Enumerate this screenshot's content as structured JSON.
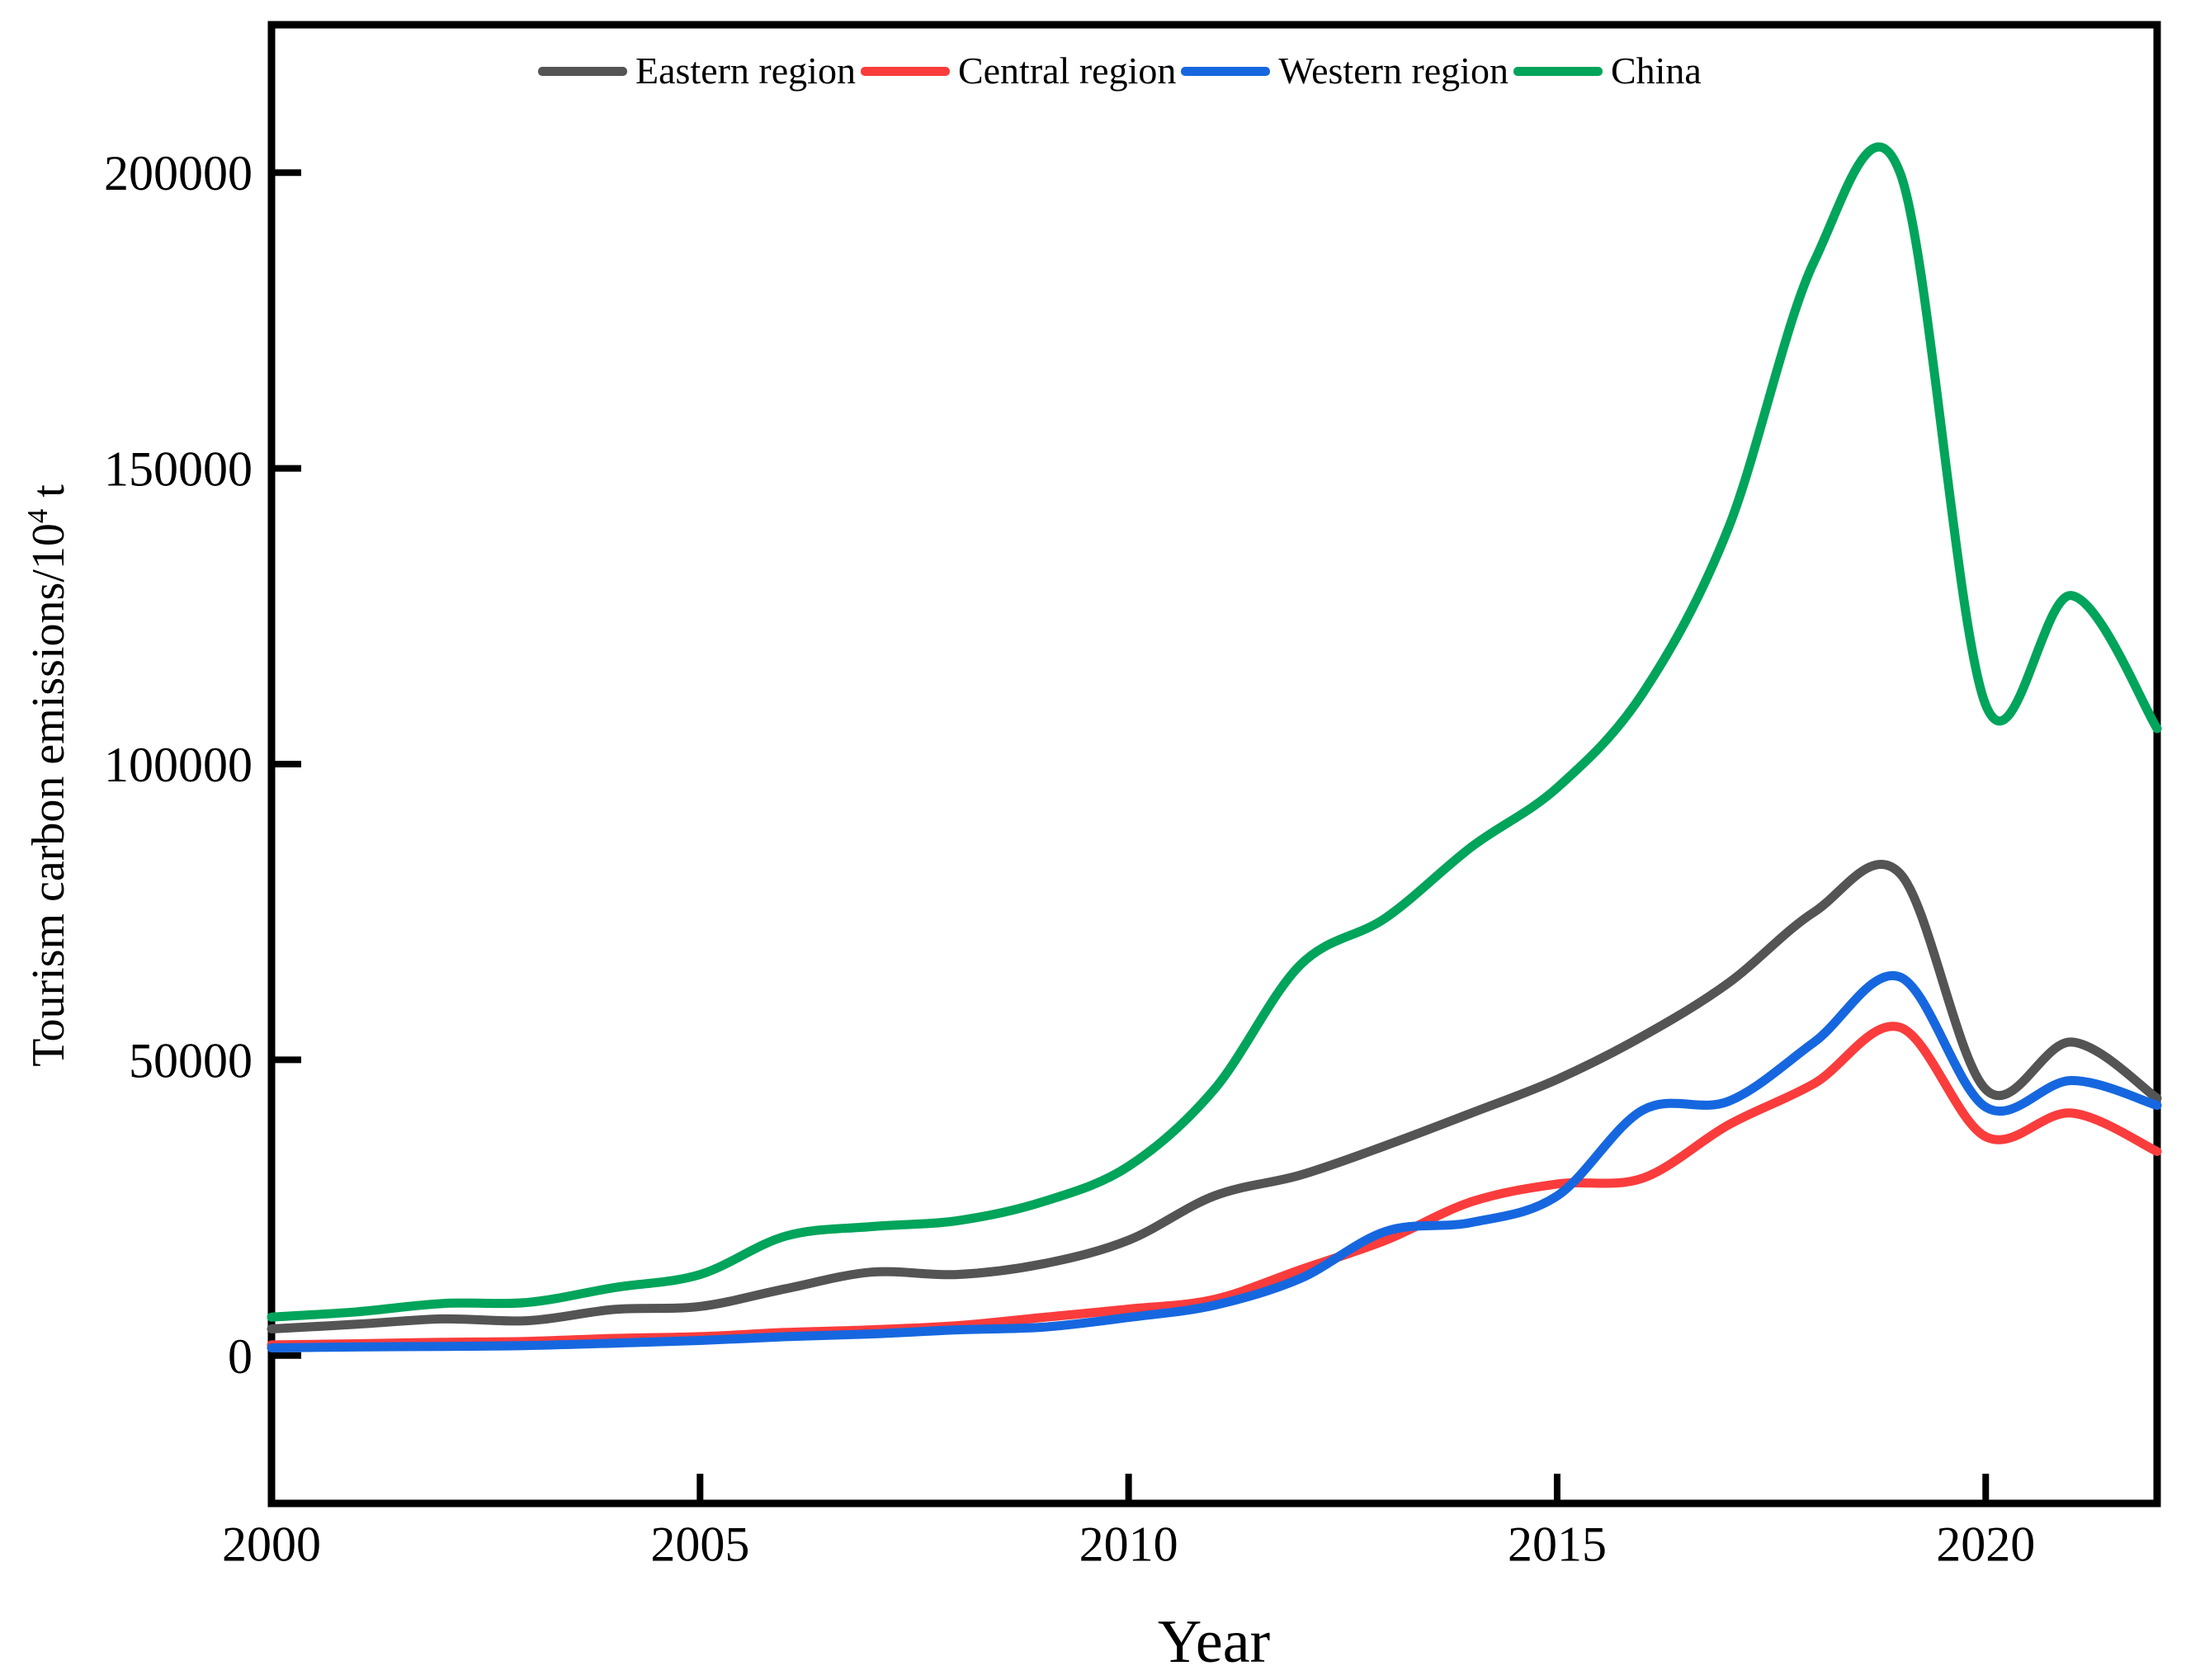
{
  "page": {
    "background": "#ffffff",
    "frame_color": "#000000"
  },
  "chart_data": {
    "type": "line",
    "title": "",
    "xlabel": "Year",
    "ylabel": "Tourism carbon emissions/10^4 t",
    "ylabel_prefix": "Tourism carbon emissions/10",
    "ylabel_sup": "4",
    "ylabel_suffix": " t",
    "grid": false,
    "legend_position": "top-center",
    "xlim": [
      2000,
      2022
    ],
    "ylim": [
      -25000,
      225000
    ],
    "x_ticks": [
      2000,
      2005,
      2010,
      2015,
      2020
    ],
    "x_tick_labels": [
      "2000",
      "2005",
      "2010",
      "2015",
      "2020"
    ],
    "y_ticks": [
      0,
      50000,
      100000,
      150000,
      200000
    ],
    "y_tick_labels": [
      "0",
      "50000",
      "100000",
      "150000",
      "200000"
    ],
    "x": [
      2000,
      2001,
      2002,
      2003,
      2004,
      2005,
      2006,
      2007,
      2008,
      2009,
      2010,
      2011,
      2012,
      2013,
      2014,
      2015,
      2016,
      2017,
      2018,
      2019,
      2020,
      2021,
      2022
    ],
    "series": [
      {
        "name": "Eastern region",
        "color": "#545454",
        "values": [
          4500,
          5300,
          6200,
          5900,
          7800,
          8300,
          11300,
          14100,
          13700,
          15500,
          19500,
          27000,
          30500,
          35500,
          41000,
          46700,
          54000,
          63000,
          75000,
          81500,
          45000,
          53000,
          43500
        ]
      },
      {
        "name": "Central region",
        "color": "#FA3C3C",
        "values": [
          1800,
          2000,
          2250,
          2400,
          2900,
          3200,
          3900,
          4350,
          5050,
          6450,
          7850,
          9500,
          14500,
          19500,
          26000,
          29000,
          30000,
          39000,
          46000,
          55500,
          37000,
          41000,
          34500
        ]
      },
      {
        "name": "Western region",
        "color": "#1667DF",
        "values": [
          1300,
          1450,
          1550,
          1700,
          2100,
          2550,
          3200,
          3650,
          4350,
          4800,
          6450,
          8500,
          13000,
          21000,
          22500,
          27000,
          41500,
          43000,
          53000,
          64000,
          42000,
          46500,
          42300
        ]
      },
      {
        "name": "China",
        "color": "#00A45A",
        "values": [
          6500,
          7400,
          8800,
          9000,
          11500,
          13700,
          20200,
          21800,
          22800,
          26000,
          32000,
          45000,
          66000,
          74000,
          86000,
          96000,
          112000,
          140000,
          185000,
          200000,
          110000,
          128500,
          106000
        ]
      }
    ]
  }
}
